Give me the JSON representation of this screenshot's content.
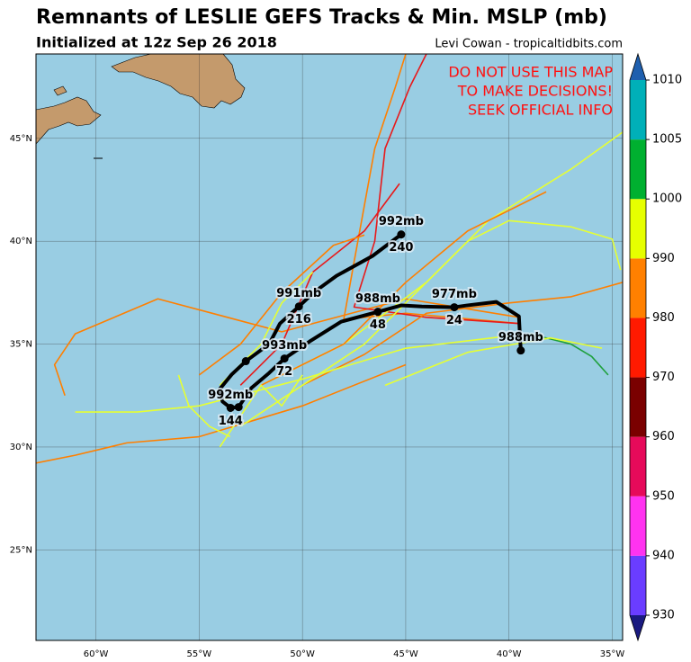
{
  "chart_data": {
    "type": "map",
    "title": "Remnants of LESLIE GEFS Tracks & Min. MSLP (mb)",
    "subtitle": "Initialized at 12z Sep 26 2018",
    "credit": "Levi Cowan - tropicaltidbits.com",
    "warning": [
      "DO NOT USE THIS MAP",
      "TO MAKE DECISIONS!",
      "SEEK OFFICIAL INFO"
    ],
    "xlim": [
      -62.9,
      -34.5
    ],
    "ylim": [
      20.6,
      49.1
    ],
    "xticks": [
      {
        "value": -60,
        "label": "60°W"
      },
      {
        "value": -55,
        "label": "55°W"
      },
      {
        "value": -50,
        "label": "50°W"
      },
      {
        "value": -45,
        "label": "45°W"
      },
      {
        "value": -40,
        "label": "40°W"
      },
      {
        "value": -35,
        "label": "35°W"
      }
    ],
    "yticks": [
      {
        "value": 25,
        "label": "25°N"
      },
      {
        "value": 30,
        "label": "30°N"
      },
      {
        "value": 35,
        "label": "35°N"
      },
      {
        "value": 40,
        "label": "40°N"
      },
      {
        "value": 45,
        "label": "45°N"
      }
    ],
    "grid": true,
    "colorbar": {
      "ticks": [
        930,
        940,
        950,
        960,
        970,
        980,
        990,
        1000,
        1005,
        1010
      ],
      "colors": [
        "#6a3dff",
        "#ff33f0",
        "#e60a5a",
        "#7a0000",
        "#ff1a00",
        "#ff8000",
        "#e6ff00",
        "#00b030",
        "#00b0b8"
      ],
      "under": "#1a1a80",
      "over": "#1f5fae"
    },
    "members": [
      {
        "color": "#ff7f00",
        "lon": [
          -39.5,
          -45,
          -51,
          -57,
          -61,
          -62,
          -61.5
        ],
        "lat": [
          36.3,
          37.2,
          35.6,
          37.2,
          35.5,
          34,
          32.5
        ]
      },
      {
        "color": "#ff7f00",
        "lon": [
          -39.5,
          -45,
          -48,
          -47.5,
          -46.5,
          -45.5,
          -45
        ],
        "lat": [
          36,
          36.5,
          36.2,
          39,
          44.5,
          47.5,
          49.1
        ]
      },
      {
        "color": "#e8191a",
        "lon": [
          -39.5,
          -44,
          -47.5,
          -46.5,
          -46,
          -44.8,
          -44
        ],
        "lat": [
          36,
          36.3,
          36.8,
          40,
          44.5,
          47.5,
          49.1
        ]
      },
      {
        "color": "#ff7f00",
        "lon": [
          -50,
          -47,
          -44,
          -40,
          -37,
          -34.5
        ],
        "lat": [
          33,
          34.5,
          36.5,
          37,
          37.3,
          38
        ]
      },
      {
        "color": "#e6ff33",
        "lon": [
          -52,
          -48,
          -44,
          -41,
          -37,
          -34.5
        ],
        "lat": [
          33,
          35,
          38,
          41,
          43.5,
          45.3
        ]
      },
      {
        "color": "#e6ff33",
        "lon": [
          -40,
          -45,
          -50,
          -55,
          -58,
          -61
        ],
        "lat": [
          35.4,
          34.8,
          33.3,
          32,
          31.7,
          31.7
        ]
      },
      {
        "color": "#ff7f00",
        "lon": [
          -45,
          -50,
          -55,
          -58.5,
          -61,
          -63
        ],
        "lat": [
          34,
          32,
          30.5,
          30.2,
          29.6,
          29.2
        ]
      },
      {
        "color": "#e6ff33",
        "lon": [
          -53,
          -50,
          -47,
          -45,
          -42,
          -40,
          -37,
          -35,
          -34.6
        ],
        "lat": [
          31,
          33,
          35,
          37,
          40,
          41,
          40.7,
          40.1,
          38.6
        ]
      },
      {
        "color": "#1ea03c",
        "lon": [
          -39,
          -37,
          -36,
          -35.2
        ],
        "lat": [
          35.5,
          35,
          34.4,
          33.5
        ]
      },
      {
        "color": "#e8191a",
        "lon": [
          -53,
          -51,
          -49.5,
          -47,
          -45.3
        ],
        "lat": [
          33,
          35,
          38.5,
          40.5,
          42.8
        ]
      },
      {
        "color": "#e6ff33",
        "lon": [
          -54,
          -52,
          -51,
          -49.5
        ],
        "lat": [
          33,
          35,
          37,
          38.5
        ]
      },
      {
        "color": "#ff7f00",
        "lon": [
          -52,
          -48,
          -45,
          -42,
          -38.2
        ],
        "lat": [
          33,
          35,
          38,
          40.5,
          42.4
        ]
      },
      {
        "color": "#e6ff33",
        "lon": [
          -46,
          -42,
          -38,
          -35.5
        ],
        "lat": [
          33,
          34.6,
          35.3,
          34.8
        ]
      },
      {
        "color": "#ff7f00",
        "lon": [
          -55,
          -53,
          -51,
          -48.5,
          -47
        ],
        "lat": [
          33.5,
          35,
          37.5,
          39.8,
          40.3
        ]
      },
      {
        "color": "#e6ff33",
        "lon": [
          -54,
          -53,
          -52,
          -51,
          -50
        ],
        "lat": [
          30,
          31.5,
          33,
          32,
          33.5
        ]
      },
      {
        "color": "#e6ff33",
        "lon": [
          -56,
          -55.5,
          -54.5,
          -53.5
        ],
        "lat": [
          33.5,
          32,
          31,
          30.5
        ]
      }
    ],
    "mean_track": {
      "lon": [
        -39.43,
        -39.52,
        -40.61,
        -42.04,
        -42.65,
        -44.22,
        -45.22,
        -46.35,
        -48.13,
        -49.65,
        -50.87,
        -51.61,
        -52.48,
        -53.09,
        -53.48,
        -53.87,
        -54.0,
        -53.43,
        -52.74,
        -51.61,
        -51.09,
        -50.17,
        -49.43,
        -48.35,
        -46.61,
        -45.22
      ],
      "lat": [
        34.69,
        36.35,
        37.05,
        36.88,
        36.79,
        36.83,
        36.88,
        36.57,
        36.09,
        35.13,
        34.3,
        33.6,
        32.86,
        31.94,
        31.9,
        32.21,
        32.82,
        33.52,
        34.17,
        35.0,
        36.0,
        36.83,
        37.53,
        38.32,
        39.28,
        40.33
      ]
    },
    "points": [
      {
        "lon": -39.43,
        "lat": 34.69,
        "pressure": 988,
        "pressure_label": "988mb"
      },
      {
        "lon": -42.65,
        "lat": 36.79,
        "pressure": 977,
        "pressure_label": "977mb",
        "hour": 24
      },
      {
        "lon": -46.35,
        "lat": 36.57,
        "pressure": 988,
        "pressure_label": "988mb",
        "hour": 48
      },
      {
        "lon": -50.87,
        "lat": 34.3,
        "pressure": 993,
        "pressure_label": "993mb",
        "hour": 72
      },
      {
        "lon": -53.09,
        "lat": 31.94
      },
      {
        "lon": -53.48,
        "lat": 31.9,
        "pressure": 992,
        "pressure_label": "992mb",
        "hour": 144
      },
      {
        "lon": -52.74,
        "lat": 34.17
      },
      {
        "lon": -50.17,
        "lat": 36.83,
        "pressure": 991,
        "pressure_label": "991mb",
        "hour": 216
      },
      {
        "lon": -45.22,
        "lat": 40.33,
        "pressure": 992,
        "pressure_label": "992mb",
        "hour": 240
      }
    ]
  }
}
